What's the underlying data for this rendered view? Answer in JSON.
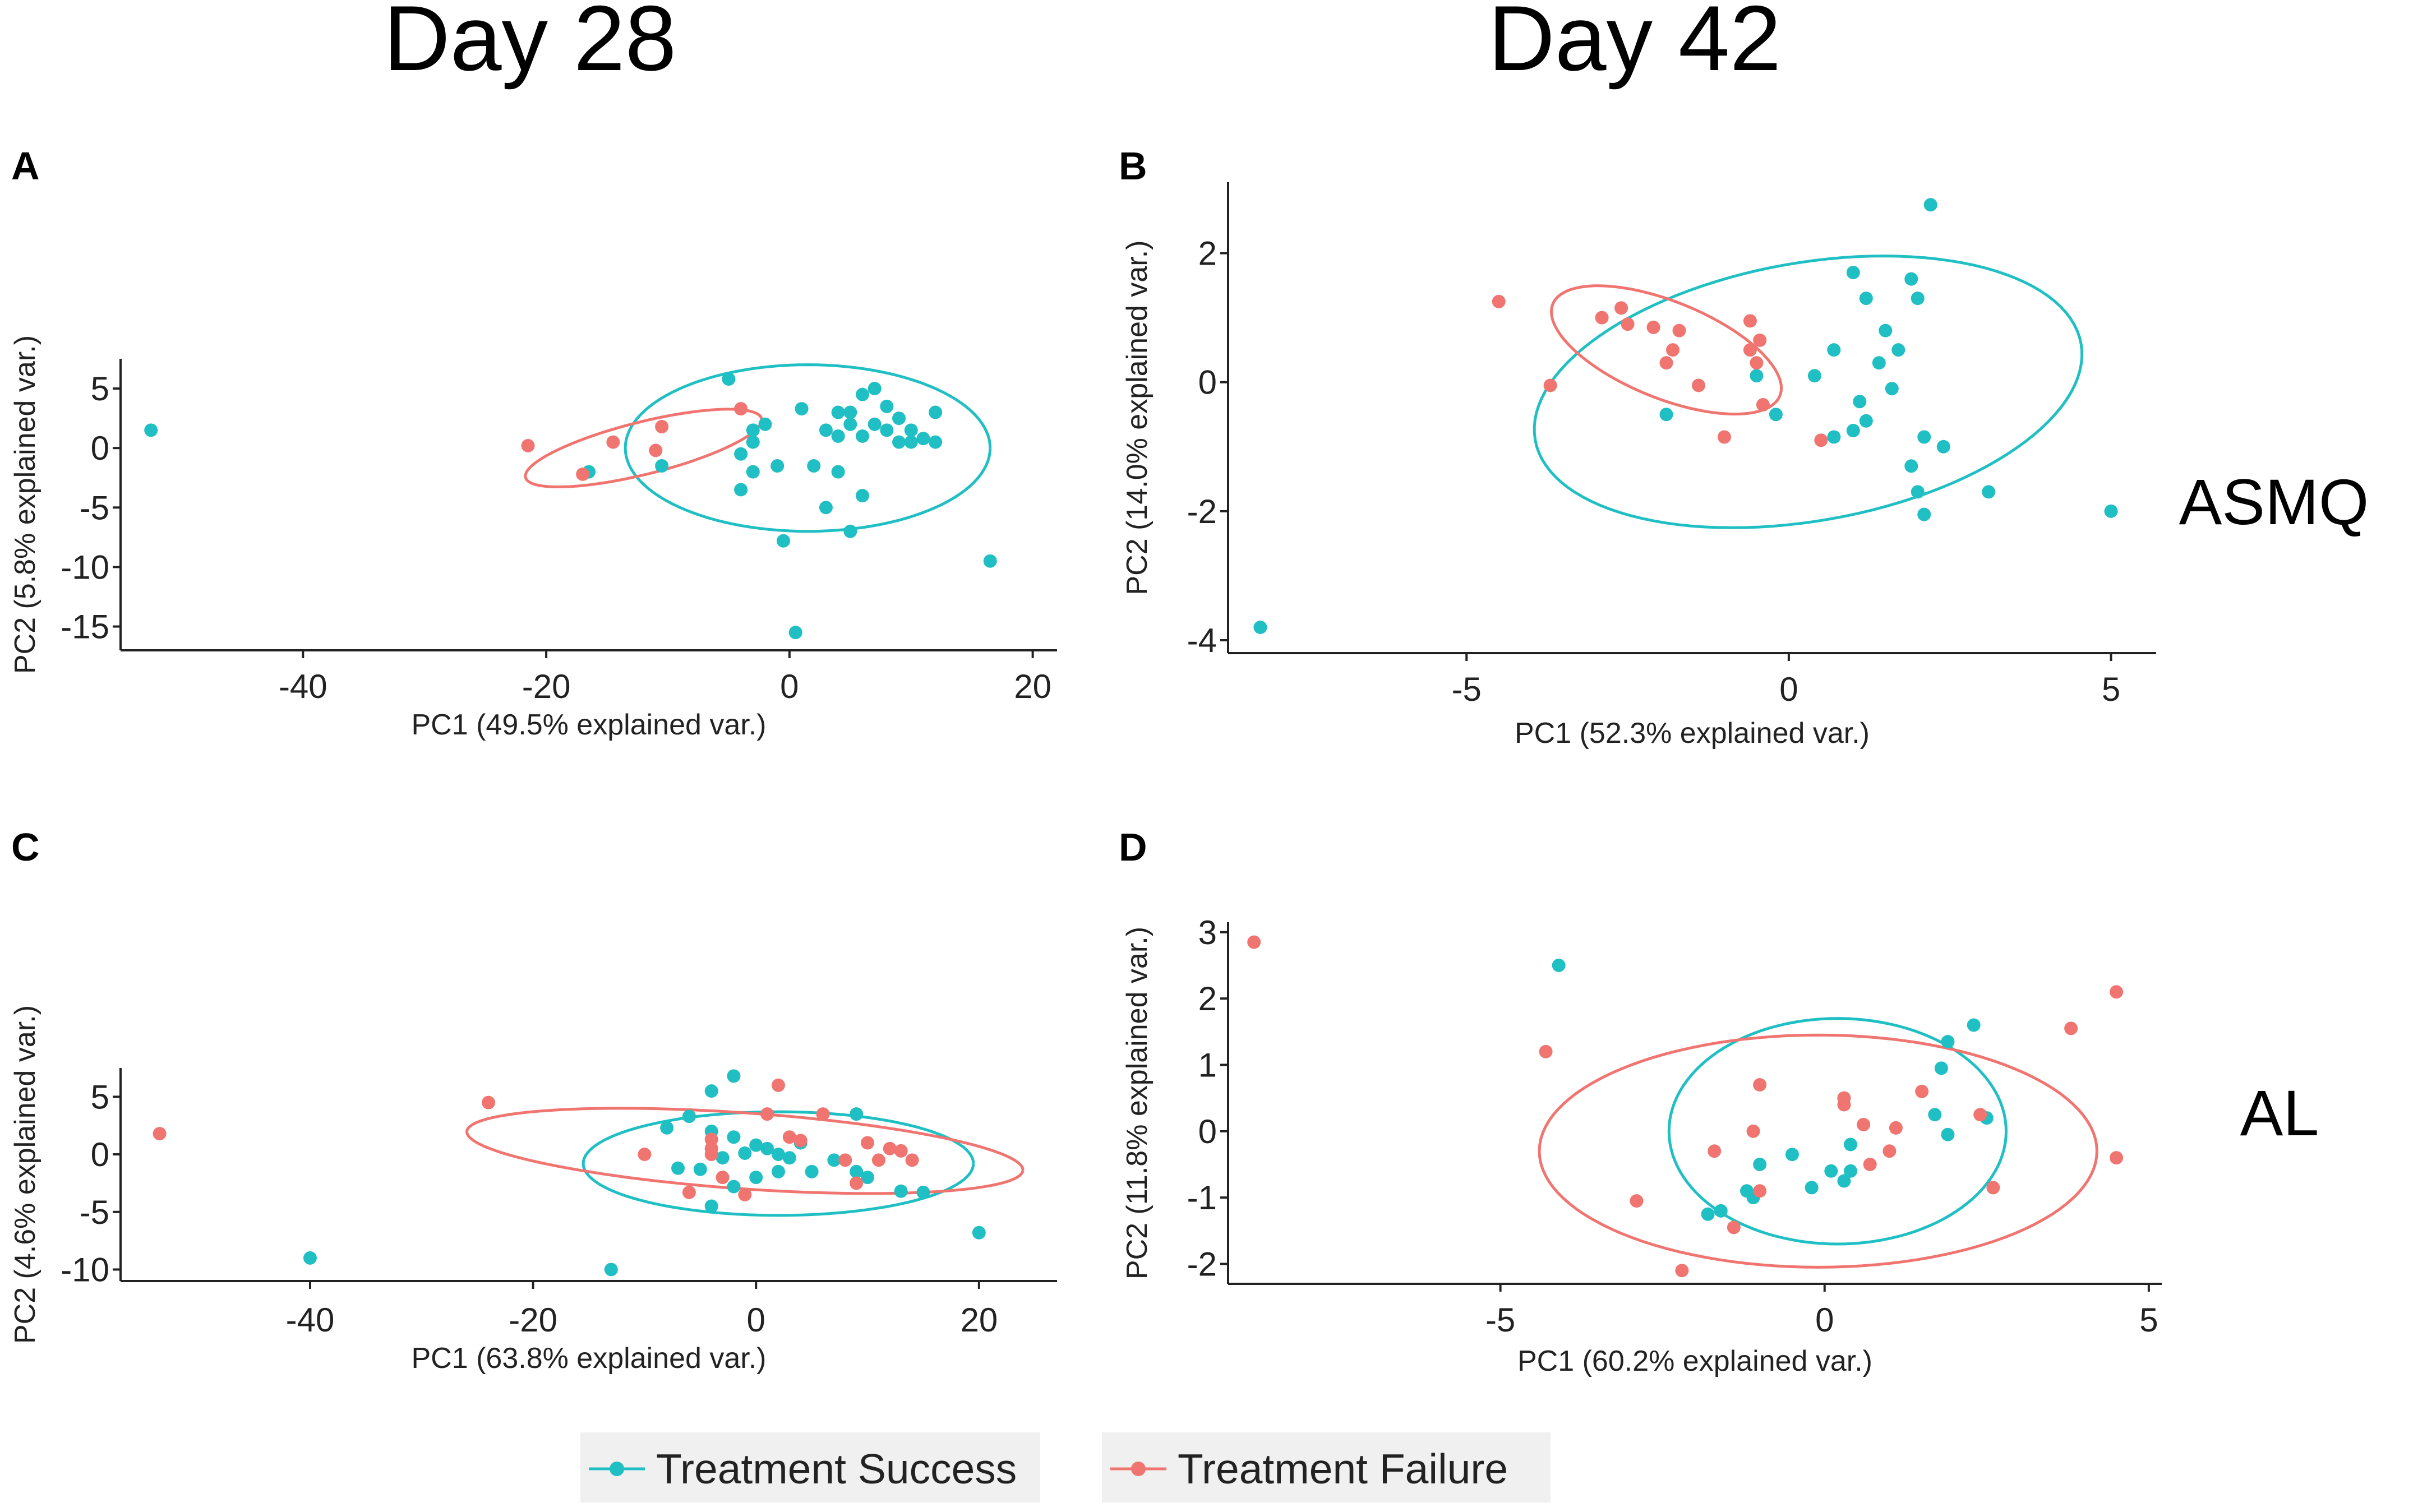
{
  "column_titles": [
    "Day 28",
    "Day 42"
  ],
  "row_labels": [
    "ASMQ",
    "AL"
  ],
  "colors": {
    "success": "#1fbfc3",
    "failure": "#f07470"
  },
  "legend": {
    "success_label": "Treatment Success",
    "failure_label": "Treatment Failure"
  },
  "chart_data": [
    {
      "panel": "A",
      "type": "scatter",
      "xlabel": "PC1 (49.5% explained var.)",
      "ylabel": "PC2 (5.8% explained var.)",
      "xlim": [
        -55,
        22
      ],
      "ylim": [
        -17,
        7.5
      ],
      "xticks": [
        -40,
        -20,
        0,
        20
      ],
      "yticks": [
        5,
        0,
        -5,
        -10,
        -15
      ],
      "ellipses": [
        {
          "group": "success",
          "cx": 1.5,
          "cy": 0,
          "rx": 15,
          "ry": 7,
          "angle": 0
        },
        {
          "group": "failure",
          "cx": -12,
          "cy": 0,
          "rx": 10,
          "ry": 2.2,
          "angle": 14
        }
      ],
      "series": [
        {
          "name": "Treatment Success",
          "group": "success",
          "points": [
            [
              -52.5,
              1.5
            ],
            [
              -5,
              5.8
            ],
            [
              1,
              3.3
            ],
            [
              4,
              3
            ],
            [
              5,
              3
            ],
            [
              6,
              4.5
            ],
            [
              7,
              5
            ],
            [
              7,
              2
            ],
            [
              8,
              3.5
            ],
            [
              9,
              2.5
            ],
            [
              10,
              1.5
            ],
            [
              11,
              0.8
            ],
            [
              12,
              3
            ],
            [
              12,
              0.5
            ],
            [
              9,
              0.5
            ],
            [
              6,
              1
            ],
            [
              4,
              1
            ],
            [
              3,
              1.5
            ],
            [
              5,
              2
            ],
            [
              8,
              1.5
            ],
            [
              10,
              0.5
            ],
            [
              -3,
              1.5
            ],
            [
              -4,
              -0.5
            ],
            [
              -3,
              0.5
            ],
            [
              -2,
              2
            ],
            [
              -1,
              -1.5
            ],
            [
              -3,
              -2
            ],
            [
              -4,
              -3.5
            ],
            [
              2,
              -1.5
            ],
            [
              4,
              -2
            ],
            [
              6,
              -4
            ],
            [
              3,
              -5
            ],
            [
              5,
              -7
            ],
            [
              -0.5,
              -7.8
            ],
            [
              16.5,
              -9.5
            ],
            [
              0.5,
              -15.5
            ],
            [
              -16.5,
              -2
            ],
            [
              -10.5,
              -1.5
            ]
          ]
        },
        {
          "name": "Treatment Failure",
          "group": "failure",
          "points": [
            [
              -21.5,
              0.2
            ],
            [
              -17,
              -2.2
            ],
            [
              -14.5,
              0.5
            ],
            [
              -11,
              -0.2
            ],
            [
              -10.5,
              1.8
            ],
            [
              -4,
              3.3
            ]
          ]
        }
      ]
    },
    {
      "panel": "B",
      "type": "scatter",
      "xlabel": "PC1 (52.3% explained var.)",
      "ylabel": "PC2 (14.0% explained var.)",
      "xlim": [
        -8.7,
        5.7
      ],
      "ylim": [
        -4.2,
        3.1
      ],
      "xticks": [
        -5,
        0,
        5
      ],
      "yticks": [
        2,
        0,
        -2,
        -4
      ],
      "ellipses": [
        {
          "group": "success",
          "cx": 0.3,
          "cy": -0.15,
          "rx": 4.3,
          "ry": 2.0,
          "angle": 10
        },
        {
          "group": "failure",
          "cx": -1.9,
          "cy": 0.5,
          "rx": 1.9,
          "ry": 0.75,
          "angle": -22
        }
      ],
      "series": [
        {
          "name": "Treatment Success",
          "group": "success",
          "points": [
            [
              2.2,
              2.75
            ],
            [
              1.0,
              1.7
            ],
            [
              1.9,
              1.6
            ],
            [
              1.2,
              1.3
            ],
            [
              2.0,
              1.3
            ],
            [
              1.5,
              0.8
            ],
            [
              0.7,
              0.5
            ],
            [
              1.4,
              0.3
            ],
            [
              1.7,
              0.5
            ],
            [
              0.4,
              0.1
            ],
            [
              1.6,
              -0.1
            ],
            [
              1.1,
              -0.3
            ],
            [
              1.2,
              -0.6
            ],
            [
              1.0,
              -0.75
            ],
            [
              0.7,
              -0.85
            ],
            [
              -0.2,
              -0.5
            ],
            [
              -0.5,
              0.1
            ],
            [
              -1.9,
              -0.5
            ],
            [
              2.1,
              -0.85
            ],
            [
              2.4,
              -1.0
            ],
            [
              1.9,
              -1.3
            ],
            [
              2.0,
              -1.7
            ],
            [
              2.1,
              -2.05
            ],
            [
              3.1,
              -1.7
            ],
            [
              5.0,
              -2.0
            ],
            [
              -8.2,
              -3.8
            ]
          ]
        },
        {
          "name": "Treatment Failure",
          "group": "failure",
          "points": [
            [
              -4.5,
              1.25
            ],
            [
              -3.7,
              -0.05
            ],
            [
              -2.9,
              1.0
            ],
            [
              -2.6,
              1.15
            ],
            [
              -2.5,
              0.9
            ],
            [
              -2.1,
              0.85
            ],
            [
              -1.7,
              0.8
            ],
            [
              -1.8,
              0.5
            ],
            [
              -1.9,
              0.3
            ],
            [
              -0.6,
              0.5
            ],
            [
              -0.5,
              0.3
            ],
            [
              -0.45,
              0.65
            ],
            [
              -1.4,
              -0.05
            ],
            [
              -1.0,
              -0.85
            ],
            [
              -0.6,
              0.95
            ],
            [
              -0.4,
              -0.35
            ],
            [
              0.5,
              -0.9
            ]
          ]
        }
      ]
    },
    {
      "panel": "C",
      "type": "scatter",
      "xlabel": "PC1 (63.8% explained var.)",
      "ylabel": "PC2 (4.6% explained var.)",
      "xlim": [
        -57,
        27
      ],
      "ylim": [
        -11,
        7.5
      ],
      "xticks": [
        -40,
        -20,
        0,
        20
      ],
      "yticks": [
        5,
        0,
        -5,
        -10
      ],
      "ellipses": [
        {
          "group": "success",
          "cx": 2,
          "cy": -0.8,
          "rx": 17.5,
          "ry": 4.5,
          "angle": 0
        },
        {
          "group": "failure",
          "cx": -1,
          "cy": 0.3,
          "rx": 25,
          "ry": 3.3,
          "angle": -4
        }
      ],
      "series": [
        {
          "name": "Treatment Success",
          "group": "success",
          "points": [
            [
              -2,
              6.8
            ],
            [
              -4,
              5.5
            ],
            [
              -6,
              3.3
            ],
            [
              -8,
              2.3
            ],
            [
              -4,
              2
            ],
            [
              -2,
              1.5
            ],
            [
              0,
              0.8
            ],
            [
              1,
              0.5
            ],
            [
              2,
              0
            ],
            [
              3,
              -0.3
            ],
            [
              4,
              1
            ],
            [
              -1,
              0.1
            ],
            [
              -3,
              -0.3
            ],
            [
              -5,
              -1.3
            ],
            [
              -7,
              -1.2
            ],
            [
              -2,
              -2.8
            ],
            [
              0,
              -2
            ],
            [
              2,
              -1.5
            ],
            [
              5,
              -1.5
            ],
            [
              7,
              -0.5
            ],
            [
              9,
              -1.5
            ],
            [
              10,
              -2
            ],
            [
              9,
              3.5
            ],
            [
              13,
              -3.2
            ],
            [
              15,
              -3.3
            ],
            [
              -4,
              -4.5
            ],
            [
              -40,
              -9
            ],
            [
              -13,
              -10
            ],
            [
              20,
              -6.8
            ]
          ]
        },
        {
          "name": "Treatment Failure",
          "group": "failure",
          "points": [
            [
              -53.5,
              1.8
            ],
            [
              -24,
              4.5
            ],
            [
              -10,
              0
            ],
            [
              -6,
              -3.3
            ],
            [
              -4,
              0
            ],
            [
              -3,
              -2
            ],
            [
              -4,
              1.3
            ],
            [
              2,
              6
            ],
            [
              3,
              1.5
            ],
            [
              1,
              3.5
            ],
            [
              -1,
              -3.5
            ],
            [
              6,
              3.5
            ],
            [
              8,
              -0.5
            ],
            [
              9,
              -2.5
            ],
            [
              10,
              1
            ],
            [
              11,
              -0.5
            ],
            [
              12,
              0.5
            ],
            [
              13,
              0.3
            ],
            [
              14,
              -0.5
            ],
            [
              -4,
              0.5
            ],
            [
              4,
              1.2
            ]
          ]
        }
      ]
    },
    {
      "panel": "D",
      "type": "scatter",
      "xlabel": "PC1 (60.2% explained var.)",
      "ylabel": "PC2 (11.8% explained var.)",
      "xlim": [
        -9.2,
        5.2
      ],
      "ylim": [
        -2.3,
        3.15
      ],
      "xticks": [
        -5,
        0,
        5
      ],
      "yticks": [
        3,
        2,
        1,
        0,
        -1,
        -2
      ],
      "ellipses": [
        {
          "group": "success",
          "cx": 0.2,
          "cy": 0,
          "rx": 2.6,
          "ry": 1.7,
          "angle": 0
        },
        {
          "group": "failure",
          "cx": -0.1,
          "cy": -0.3,
          "rx": 4.3,
          "ry": 1.75,
          "angle": 0
        }
      ],
      "series": [
        {
          "name": "Treatment Success",
          "group": "success",
          "points": [
            [
              -4.1,
              2.5
            ],
            [
              2.3,
              1.6
            ],
            [
              1.9,
              1.35
            ],
            [
              1.8,
              0.95
            ],
            [
              2.5,
              0.2
            ],
            [
              1.7,
              0.25
            ],
            [
              1.9,
              -0.05
            ],
            [
              0.4,
              -0.2
            ],
            [
              0.1,
              -0.6
            ],
            [
              0.3,
              -0.75
            ],
            [
              0.4,
              -0.6
            ],
            [
              -0.2,
              -0.85
            ],
            [
              -1.2,
              -0.9
            ],
            [
              -1.1,
              -1.0
            ],
            [
              -1.6,
              -1.2
            ],
            [
              -1.8,
              -1.25
            ],
            [
              -1.0,
              -0.5
            ],
            [
              -0.5,
              -0.35
            ]
          ]
        },
        {
          "name": "Treatment Failure",
          "group": "failure",
          "points": [
            [
              -8.8,
              2.85
            ],
            [
              -4.3,
              1.2
            ],
            [
              4.5,
              2.1
            ],
            [
              3.8,
              1.55
            ],
            [
              4.5,
              -0.4
            ],
            [
              -1.0,
              0.7
            ],
            [
              -1.7,
              -0.3
            ],
            [
              -1.0,
              -0.9
            ],
            [
              -2.9,
              -1.05
            ],
            [
              -2.2,
              -2.1
            ],
            [
              0.3,
              0.5
            ],
            [
              0.3,
              0.4
            ],
            [
              0.6,
              0.1
            ],
            [
              1.1,
              0.05
            ],
            [
              1.5,
              0.6
            ],
            [
              1.0,
              -0.3
            ],
            [
              0.7,
              -0.5
            ],
            [
              -1.1,
              0
            ],
            [
              -1.4,
              -1.45
            ],
            [
              2.4,
              0.25
            ],
            [
              2.6,
              -0.85
            ]
          ]
        }
      ]
    }
  ]
}
